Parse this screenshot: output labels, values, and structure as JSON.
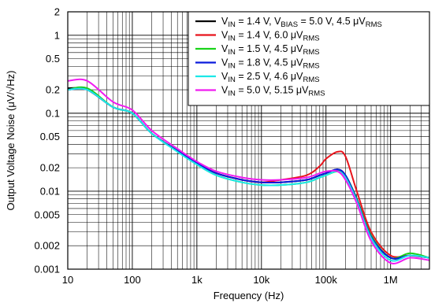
{
  "chart_data": {
    "type": "line",
    "xlabel": "Frequency (Hz)",
    "ylabel": "Output Voltage Noise (μV/√Hz)",
    "x_scale": "log",
    "y_scale": "log",
    "xlim": [
      10,
      4000000
    ],
    "ylim": [
      0.001,
      2
    ],
    "grid": true,
    "legend_position": "top-right",
    "x_ticks": [
      {
        "value": 10,
        "label": "10"
      },
      {
        "value": 100,
        "label": "100"
      },
      {
        "value": 1000,
        "label": "1k"
      },
      {
        "value": 10000,
        "label": "10k"
      },
      {
        "value": 100000,
        "label": "100k"
      },
      {
        "value": 1000000,
        "label": "1M"
      }
    ],
    "y_ticks": [
      {
        "value": 0.001,
        "label": "0.001"
      },
      {
        "value": 0.002,
        "label": "0.002"
      },
      {
        "value": 0.005,
        "label": "0.005"
      },
      {
        "value": 0.01,
        "label": "0.01"
      },
      {
        "value": 0.02,
        "label": "0.02"
      },
      {
        "value": 0.05,
        "label": "0.05"
      },
      {
        "value": 0.1,
        "label": "0.1"
      },
      {
        "value": 0.2,
        "label": "0.2"
      },
      {
        "value": 0.5,
        "label": "0.5"
      },
      {
        "value": 1,
        "label": "1"
      },
      {
        "value": 2,
        "label": "2"
      }
    ],
    "series": [
      {
        "name": "VIN = 1.4 V, VBIAS = 5.0 V, 4.5 μVRMS",
        "legend_parts": [
          [
            "V",
            ""
          ],
          [
            "IN",
            "sub"
          ],
          [
            " = 1.4 V, V",
            ""
          ],
          [
            "BIAS",
            "sub"
          ],
          [
            " = 5.0 V, 4.5 μV",
            ""
          ],
          [
            "RMS",
            "sub"
          ]
        ],
        "color": "#000000",
        "x": [
          10,
          20,
          50,
          100,
          200,
          500,
          1000,
          2000,
          5000,
          10000,
          20000,
          50000,
          80000,
          100000,
          150000,
          200000,
          300000,
          500000,
          1000000,
          2000000,
          4000000
        ],
        "y": [
          0.21,
          0.2,
          0.12,
          0.1,
          0.055,
          0.033,
          0.023,
          0.017,
          0.014,
          0.013,
          0.013,
          0.014,
          0.016,
          0.017,
          0.019,
          0.016,
          0.008,
          0.0027,
          0.0014,
          0.0015,
          0.0014
        ]
      },
      {
        "name": "VIN = 1.4 V, 6.0 μVRMS",
        "legend_parts": [
          [
            "V",
            ""
          ],
          [
            "IN",
            "sub"
          ],
          [
            " = 1.4 V, 6.0 μV",
            ""
          ],
          [
            "RMS",
            "sub"
          ]
        ],
        "color": "#e8141c",
        "x": [
          10,
          20,
          50,
          100,
          200,
          500,
          1000,
          2000,
          5000,
          10000,
          20000,
          50000,
          80000,
          100000,
          150000,
          200000,
          300000,
          500000,
          1000000,
          2000000,
          4000000
        ],
        "y": [
          0.2,
          0.2,
          0.12,
          0.1,
          0.055,
          0.033,
          0.023,
          0.017,
          0.014,
          0.013,
          0.014,
          0.016,
          0.021,
          0.026,
          0.032,
          0.028,
          0.01,
          0.003,
          0.0015,
          0.0015,
          0.0014
        ]
      },
      {
        "name": "VIN = 1.5 V, 4.5 μVRMS",
        "legend_parts": [
          [
            "V",
            ""
          ],
          [
            "IN",
            "sub"
          ],
          [
            " = 1.5 V, 4.5 μV",
            ""
          ],
          [
            "RMS",
            "sub"
          ]
        ],
        "color": "#19d319",
        "x": [
          10,
          20,
          50,
          100,
          200,
          500,
          1000,
          2000,
          5000,
          10000,
          20000,
          50000,
          80000,
          100000,
          150000,
          200000,
          300000,
          500000,
          1000000,
          2000000,
          4000000
        ],
        "y": [
          0.2,
          0.21,
          0.12,
          0.1,
          0.055,
          0.033,
          0.022,
          0.016,
          0.013,
          0.012,
          0.012,
          0.013,
          0.015,
          0.016,
          0.018,
          0.016,
          0.008,
          0.0027,
          0.0014,
          0.0016,
          0.0014
        ]
      },
      {
        "name": "VIN = 1.8 V, 4.5 μVRMS",
        "legend_parts": [
          [
            "V",
            ""
          ],
          [
            "IN",
            "sub"
          ],
          [
            " = 1.8 V, 4.5 μV",
            ""
          ],
          [
            "RMS",
            "sub"
          ]
        ],
        "color": "#0a1adc",
        "x": [
          10,
          20,
          50,
          100,
          200,
          500,
          1000,
          2000,
          5000,
          10000,
          20000,
          50000,
          80000,
          100000,
          150000,
          200000,
          300000,
          500000,
          1000000,
          2000000,
          4000000
        ],
        "y": [
          0.2,
          0.2,
          0.12,
          0.1,
          0.055,
          0.033,
          0.023,
          0.017,
          0.014,
          0.013,
          0.013,
          0.014,
          0.016,
          0.017,
          0.019,
          0.016,
          0.0078,
          0.0026,
          0.0014,
          0.0015,
          0.0014
        ]
      },
      {
        "name": "VIN = 2.5 V, 4.6 μVRMS",
        "legend_parts": [
          [
            "V",
            ""
          ],
          [
            "IN",
            "sub"
          ],
          [
            " = 2.5 V, 4.6 μV",
            ""
          ],
          [
            "RMS",
            "sub"
          ]
        ],
        "color": "#1ce8e8",
        "x": [
          10,
          20,
          50,
          100,
          200,
          500,
          1000,
          2000,
          5000,
          10000,
          20000,
          50000,
          80000,
          100000,
          150000,
          200000,
          300000,
          500000,
          1000000,
          2000000,
          4000000
        ],
        "y": [
          0.2,
          0.2,
          0.12,
          0.1,
          0.055,
          0.032,
          0.022,
          0.016,
          0.013,
          0.012,
          0.012,
          0.013,
          0.015,
          0.016,
          0.018,
          0.015,
          0.0075,
          0.0025,
          0.0013,
          0.0015,
          0.0014
        ]
      },
      {
        "name": "VIN = 5.0 V, 5.15 μVRMS",
        "legend_parts": [
          [
            "V",
            ""
          ],
          [
            "IN",
            "sub"
          ],
          [
            " = 5.0 V, 5.15 μV",
            ""
          ],
          [
            "RMS",
            "sub"
          ]
        ],
        "color": "#f01cf0",
        "x": [
          10,
          20,
          50,
          100,
          200,
          500,
          1000,
          2000,
          5000,
          10000,
          20000,
          50000,
          80000,
          100000,
          150000,
          200000,
          300000,
          500000,
          1000000,
          2000000,
          4000000
        ],
        "y": [
          0.26,
          0.26,
          0.14,
          0.11,
          0.06,
          0.035,
          0.024,
          0.018,
          0.015,
          0.014,
          0.014,
          0.015,
          0.017,
          0.018,
          0.018,
          0.014,
          0.007,
          0.0023,
          0.0012,
          0.0014,
          0.0013
        ]
      }
    ]
  }
}
